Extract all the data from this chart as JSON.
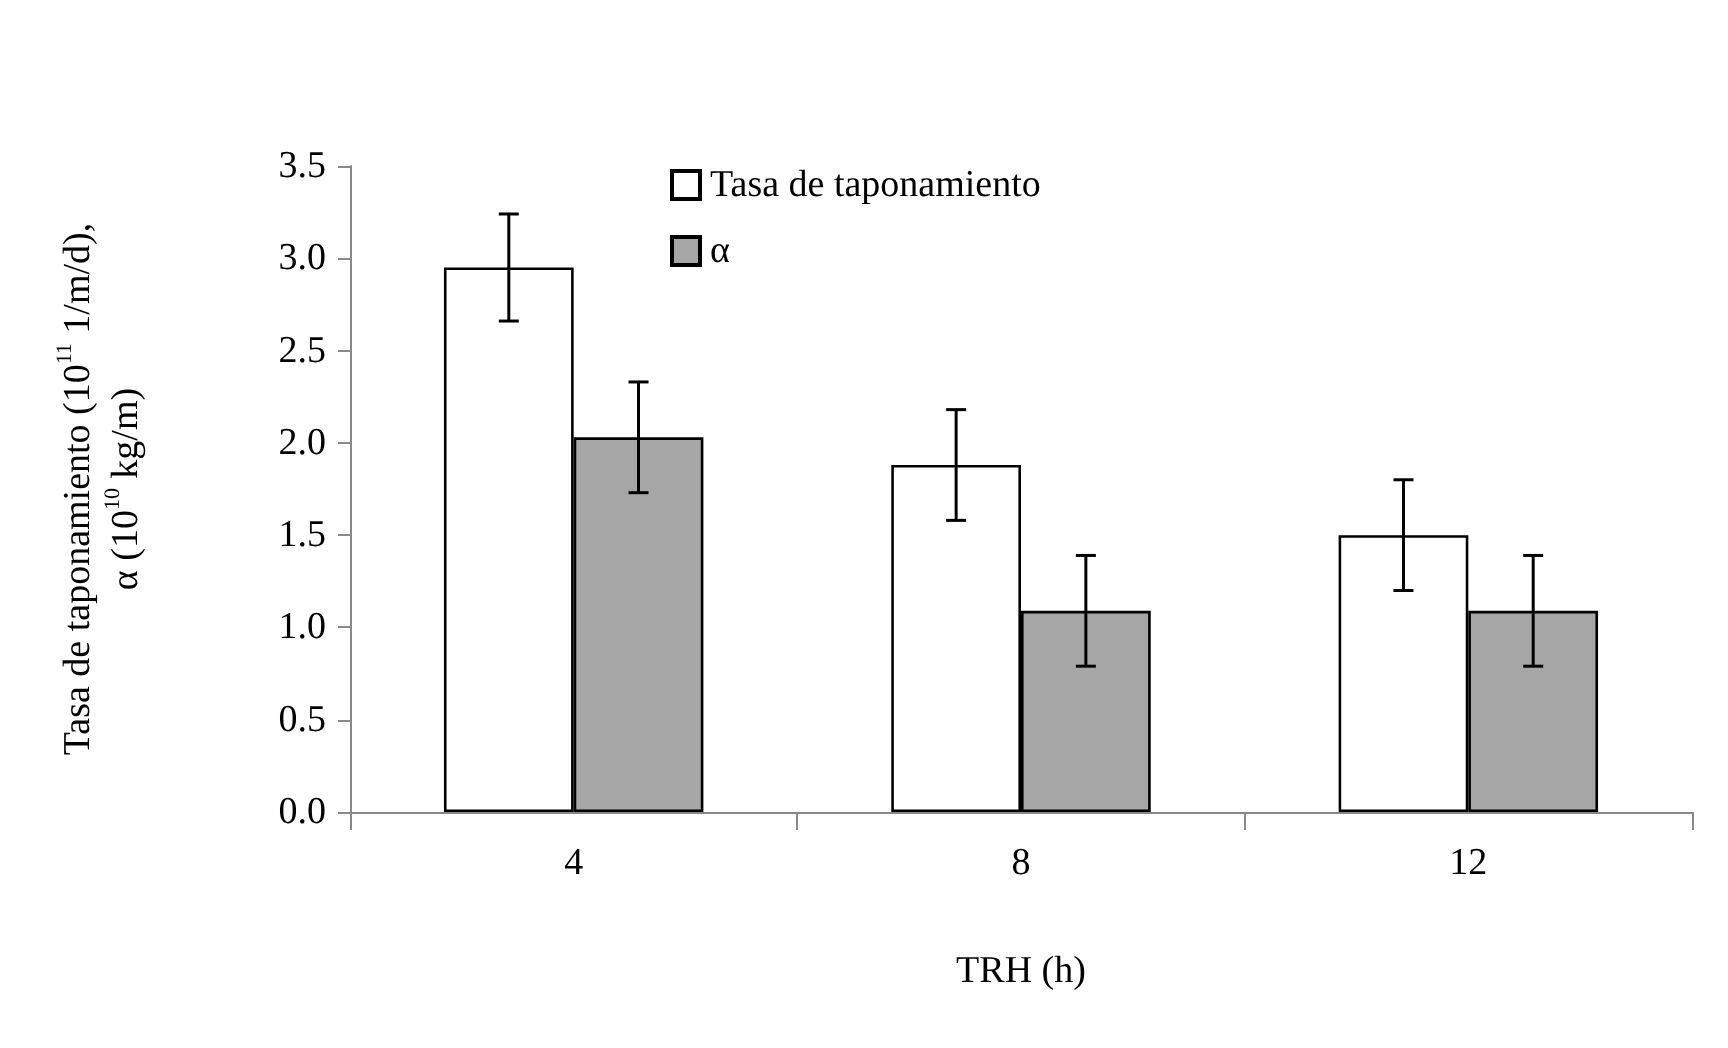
{
  "chart_data": {
    "type": "bar",
    "xlabel": "TRH (h)",
    "ylabel": "Tasa de taponamiento (10$^{11}$ 1/m/d),\nα (10$^{10}$ kg/m)",
    "categories": [
      "4",
      "8",
      "12"
    ],
    "series": [
      {
        "name": "Tasa de taponamiento",
        "color": "#ffffff",
        "values": [
          2.95,
          1.88,
          1.5
        ],
        "errors": [
          0.29,
          0.3,
          0.3
        ]
      },
      {
        "name": "α",
        "color": "#a6a6a6",
        "values": [
          2.03,
          1.09,
          1.09
        ],
        "errors": [
          0.3,
          0.3,
          0.3
        ]
      }
    ],
    "ylim": [
      0,
      3.5
    ],
    "yticks": [
      {
        "value": 0,
        "label": "0.0"
      },
      0.5,
      {
        "value": 1,
        "label": "1.0"
      },
      1.5,
      {
        "value": 2,
        "label": "2.0"
      },
      2.5,
      {
        "value": 3,
        "label": "3.0"
      },
      3.5
    ],
    "grid": false,
    "legend": "top"
  }
}
